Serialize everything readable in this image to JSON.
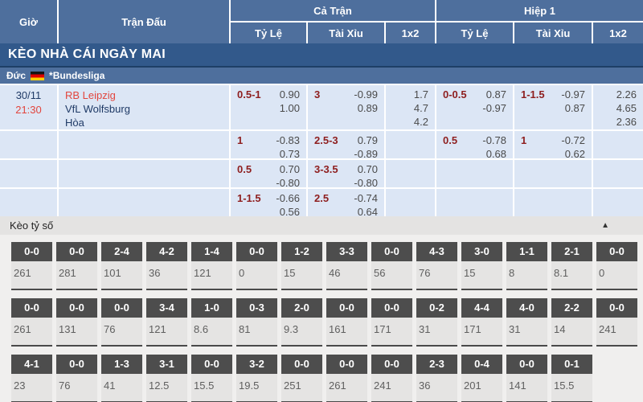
{
  "table_header": {
    "time": "Giờ",
    "match": "Trận Đấu",
    "full_match": "Cả Trận",
    "first_half": "Hiệp 1",
    "sub_columns": [
      "Tỷ Lệ",
      "Tài Xỉu",
      "1x2"
    ]
  },
  "banner": {
    "title": "KÈO NHÀ CÁI NGÀY MAI"
  },
  "league": {
    "country": "Đức",
    "flag": "germany-flag",
    "name": "*Bundesliga"
  },
  "match": {
    "date": "30/11",
    "time": "21:30",
    "home": "RB Leipzig",
    "away": "VfL Wolfsburg",
    "draw_label": "Hòa"
  },
  "odds_rows": [
    {
      "cells": [
        {
          "hdp": "0.5-1",
          "odds": [
            "0.90",
            "1.00"
          ]
        },
        {
          "hdp": "3",
          "odds": [
            "-0.99",
            "0.89"
          ]
        },
        {
          "odds": [
            "1.7",
            "4.7",
            "4.2"
          ]
        },
        {
          "hdp": "0-0.5",
          "odds": [
            "0.87",
            "-0.97"
          ]
        },
        {
          "hdp": "1-1.5",
          "odds": [
            "-0.97",
            "0.87"
          ]
        },
        {
          "odds": [
            "2.26",
            "4.65",
            "2.36"
          ]
        }
      ]
    },
    {
      "cells": [
        {
          "hdp": "1",
          "odds": [
            "-0.83",
            "0.73"
          ]
        },
        {
          "hdp": "2.5-3",
          "odds": [
            "0.79",
            "-0.89"
          ]
        },
        {
          "odds": []
        },
        {
          "hdp": "0.5",
          "odds": [
            "-0.78",
            "0.68"
          ]
        },
        {
          "hdp": "1",
          "odds": [
            "-0.72",
            "0.62"
          ]
        },
        {
          "odds": []
        }
      ]
    },
    {
      "cells": [
        {
          "hdp": "0.5",
          "odds": [
            "0.70",
            "-0.80"
          ]
        },
        {
          "hdp": "3-3.5",
          "odds": [
            "0.70",
            "-0.80"
          ]
        },
        {
          "odds": []
        },
        {
          "odds": []
        },
        {
          "odds": []
        },
        {
          "odds": []
        }
      ]
    },
    {
      "cells": [
        {
          "hdp": "1-1.5",
          "odds": [
            "-0.66",
            "0.56"
          ]
        },
        {
          "hdp": "2.5",
          "odds": [
            "-0.74",
            "0.64"
          ]
        },
        {
          "odds": []
        },
        {
          "odds": []
        },
        {
          "odds": []
        },
        {
          "odds": []
        }
      ]
    }
  ],
  "score_section": {
    "title": "Kèo tỷ số",
    "collapse_icon": "▲",
    "rows": [
      [
        {
          "score": "0-0",
          "value": "261"
        },
        {
          "score": "0-0",
          "value": "281"
        },
        {
          "score": "2-4",
          "value": "101"
        },
        {
          "score": "4-2",
          "value": "36"
        },
        {
          "score": "1-4",
          "value": "121"
        },
        {
          "score": "0-0",
          "value": "0"
        },
        {
          "score": "1-2",
          "value": "15"
        },
        {
          "score": "3-3",
          "value": "46"
        },
        {
          "score": "0-0",
          "value": "56"
        },
        {
          "score": "4-3",
          "value": "76"
        },
        {
          "score": "3-0",
          "value": "15"
        },
        {
          "score": "1-1",
          "value": "8"
        },
        {
          "score": "2-1",
          "value": "8.1"
        },
        {
          "score": "0-0",
          "value": "0"
        }
      ],
      [
        {
          "score": "0-0",
          "value": "261"
        },
        {
          "score": "0-0",
          "value": "131"
        },
        {
          "score": "0-0",
          "value": "76"
        },
        {
          "score": "3-4",
          "value": "121"
        },
        {
          "score": "1-0",
          "value": "8.6"
        },
        {
          "score": "0-3",
          "value": "81"
        },
        {
          "score": "2-0",
          "value": "9.3"
        },
        {
          "score": "0-0",
          "value": "161"
        },
        {
          "score": "0-0",
          "value": "171"
        },
        {
          "score": "0-2",
          "value": "31"
        },
        {
          "score": "4-4",
          "value": "171"
        },
        {
          "score": "4-0",
          "value": "31"
        },
        {
          "score": "2-2",
          "value": "14"
        },
        {
          "score": "0-0",
          "value": "241"
        }
      ],
      [
        {
          "score": "4-1",
          "value": "23"
        },
        {
          "score": "0-0",
          "value": "76"
        },
        {
          "score": "1-3",
          "value": "41"
        },
        {
          "score": "3-1",
          "value": "12.5"
        },
        {
          "score": "0-0",
          "value": "15.5"
        },
        {
          "score": "3-2",
          "value": "19.5"
        },
        {
          "score": "0-0",
          "value": "251"
        },
        {
          "score": "0-0",
          "value": "261"
        },
        {
          "score": "0-0",
          "value": "241"
        },
        {
          "score": "2-3",
          "value": "36"
        },
        {
          "score": "0-4",
          "value": "201"
        },
        {
          "score": "0-0",
          "value": "141"
        },
        {
          "score": "0-1",
          "value": "15.5"
        }
      ]
    ]
  },
  "colors": {
    "header_blue": "#4e6f9d",
    "banner_blue": "#32598b",
    "row_light_blue": "#dce6f5",
    "handicap_maroon": "#8e1e1e",
    "accent_red": "#e2453d",
    "navy_text": "#1f3a66",
    "score_chip_gray": "#4d4d4d"
  }
}
